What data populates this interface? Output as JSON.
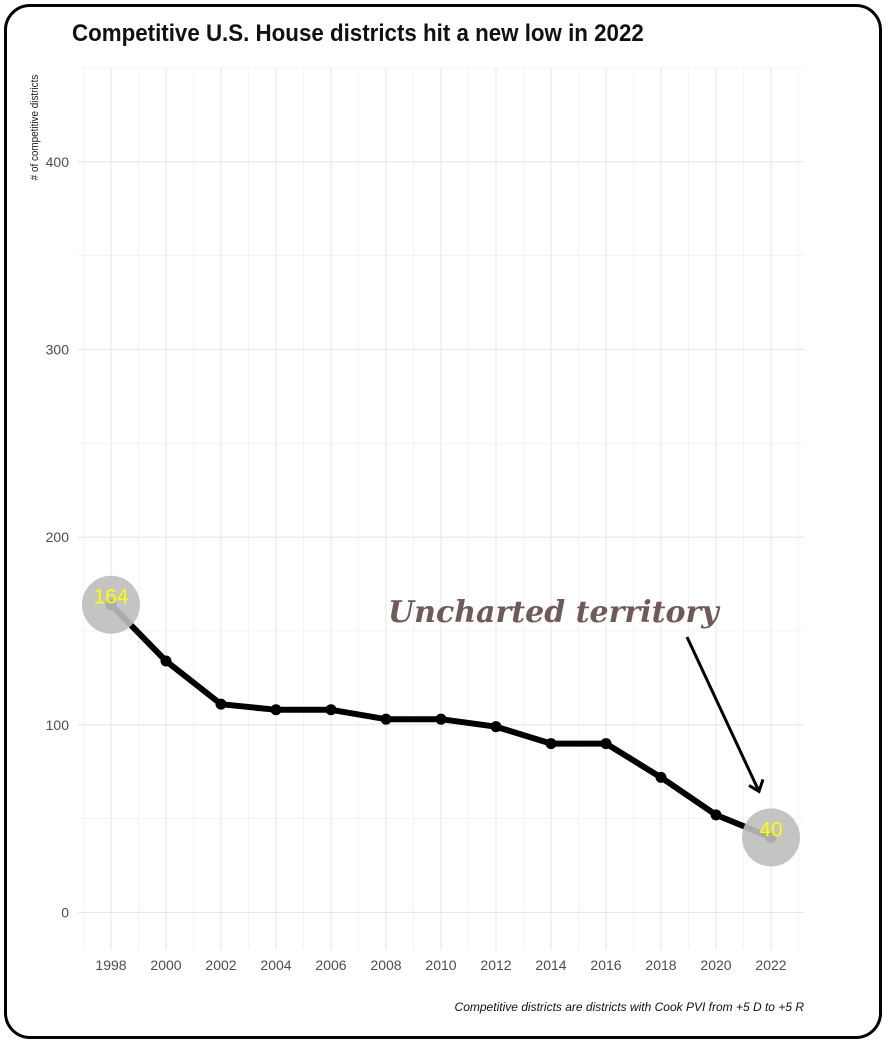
{
  "chart_data": {
    "type": "line",
    "title": "Competitive U.S. House districts hit a new low in 2022",
    "ylabel": "# of competitive districts",
    "xlabel": "",
    "caption": "Competitive districts are districts with Cook PVI from +5 D to +5 R",
    "x": [
      1998,
      2000,
      2002,
      2004,
      2006,
      2008,
      2010,
      2012,
      2014,
      2016,
      2018,
      2020,
      2022
    ],
    "series": [
      {
        "values": [
          164,
          134,
          111,
          108,
          108,
          103,
          103,
          99,
          90,
          90,
          72,
          52,
          40
        ]
      }
    ],
    "y_ticks": [
      0,
      100,
      200,
      300,
      400
    ],
    "ylim": [
      -20,
      450
    ],
    "xlim": [
      1996.8,
      2023.2
    ],
    "grid": true,
    "line_color": "#000000",
    "highlight_color": "#bebebe",
    "label_color": "#ffff00",
    "highlighted_points": [
      {
        "x": 1998,
        "y": 164,
        "label": "164"
      },
      {
        "x": 2022,
        "y": 40,
        "label": "40"
      }
    ],
    "annotation": {
      "text": "Uncharted territory",
      "color": "#6f5a56",
      "points_to": 2022
    }
  }
}
